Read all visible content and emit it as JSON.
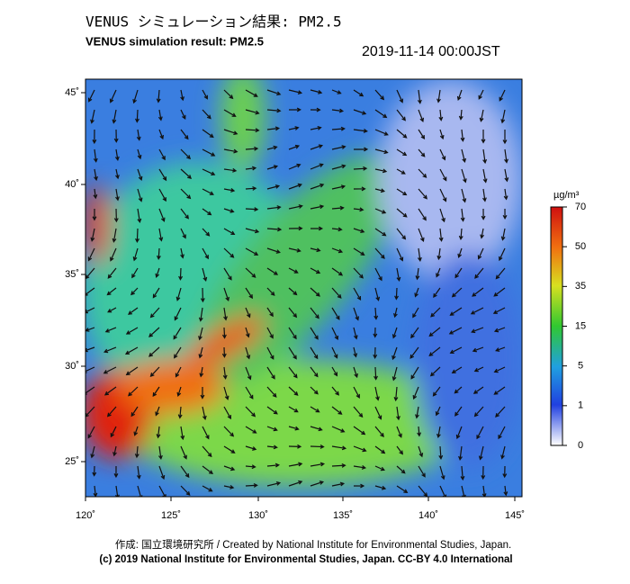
{
  "header": {
    "title_ja": "VENUS シミュレーション結果: PM2.5",
    "title_en": "VENUS simulation result: PM2.5",
    "timestamp": "2019-11-14 00:00JST"
  },
  "map": {
    "lat_labels": [
      "45˚",
      "40˚",
      "35˚",
      "30˚",
      "25˚"
    ],
    "lon_labels": [
      "120˚",
      "125˚",
      "130˚",
      "135˚",
      "140˚",
      "145˚"
    ]
  },
  "colorbar": {
    "unit": "µg/m³",
    "ticks": [
      70,
      50,
      35,
      15,
      5,
      1,
      0
    ]
  },
  "footer": {
    "credit": "作成: 国立環境研究所 / Created by National Institute for Environmental Studies, Japan.",
    "license": "(c) 2019 National Institute for Environmental Studies, Japan. CC-BY 4.0 International"
  }
}
